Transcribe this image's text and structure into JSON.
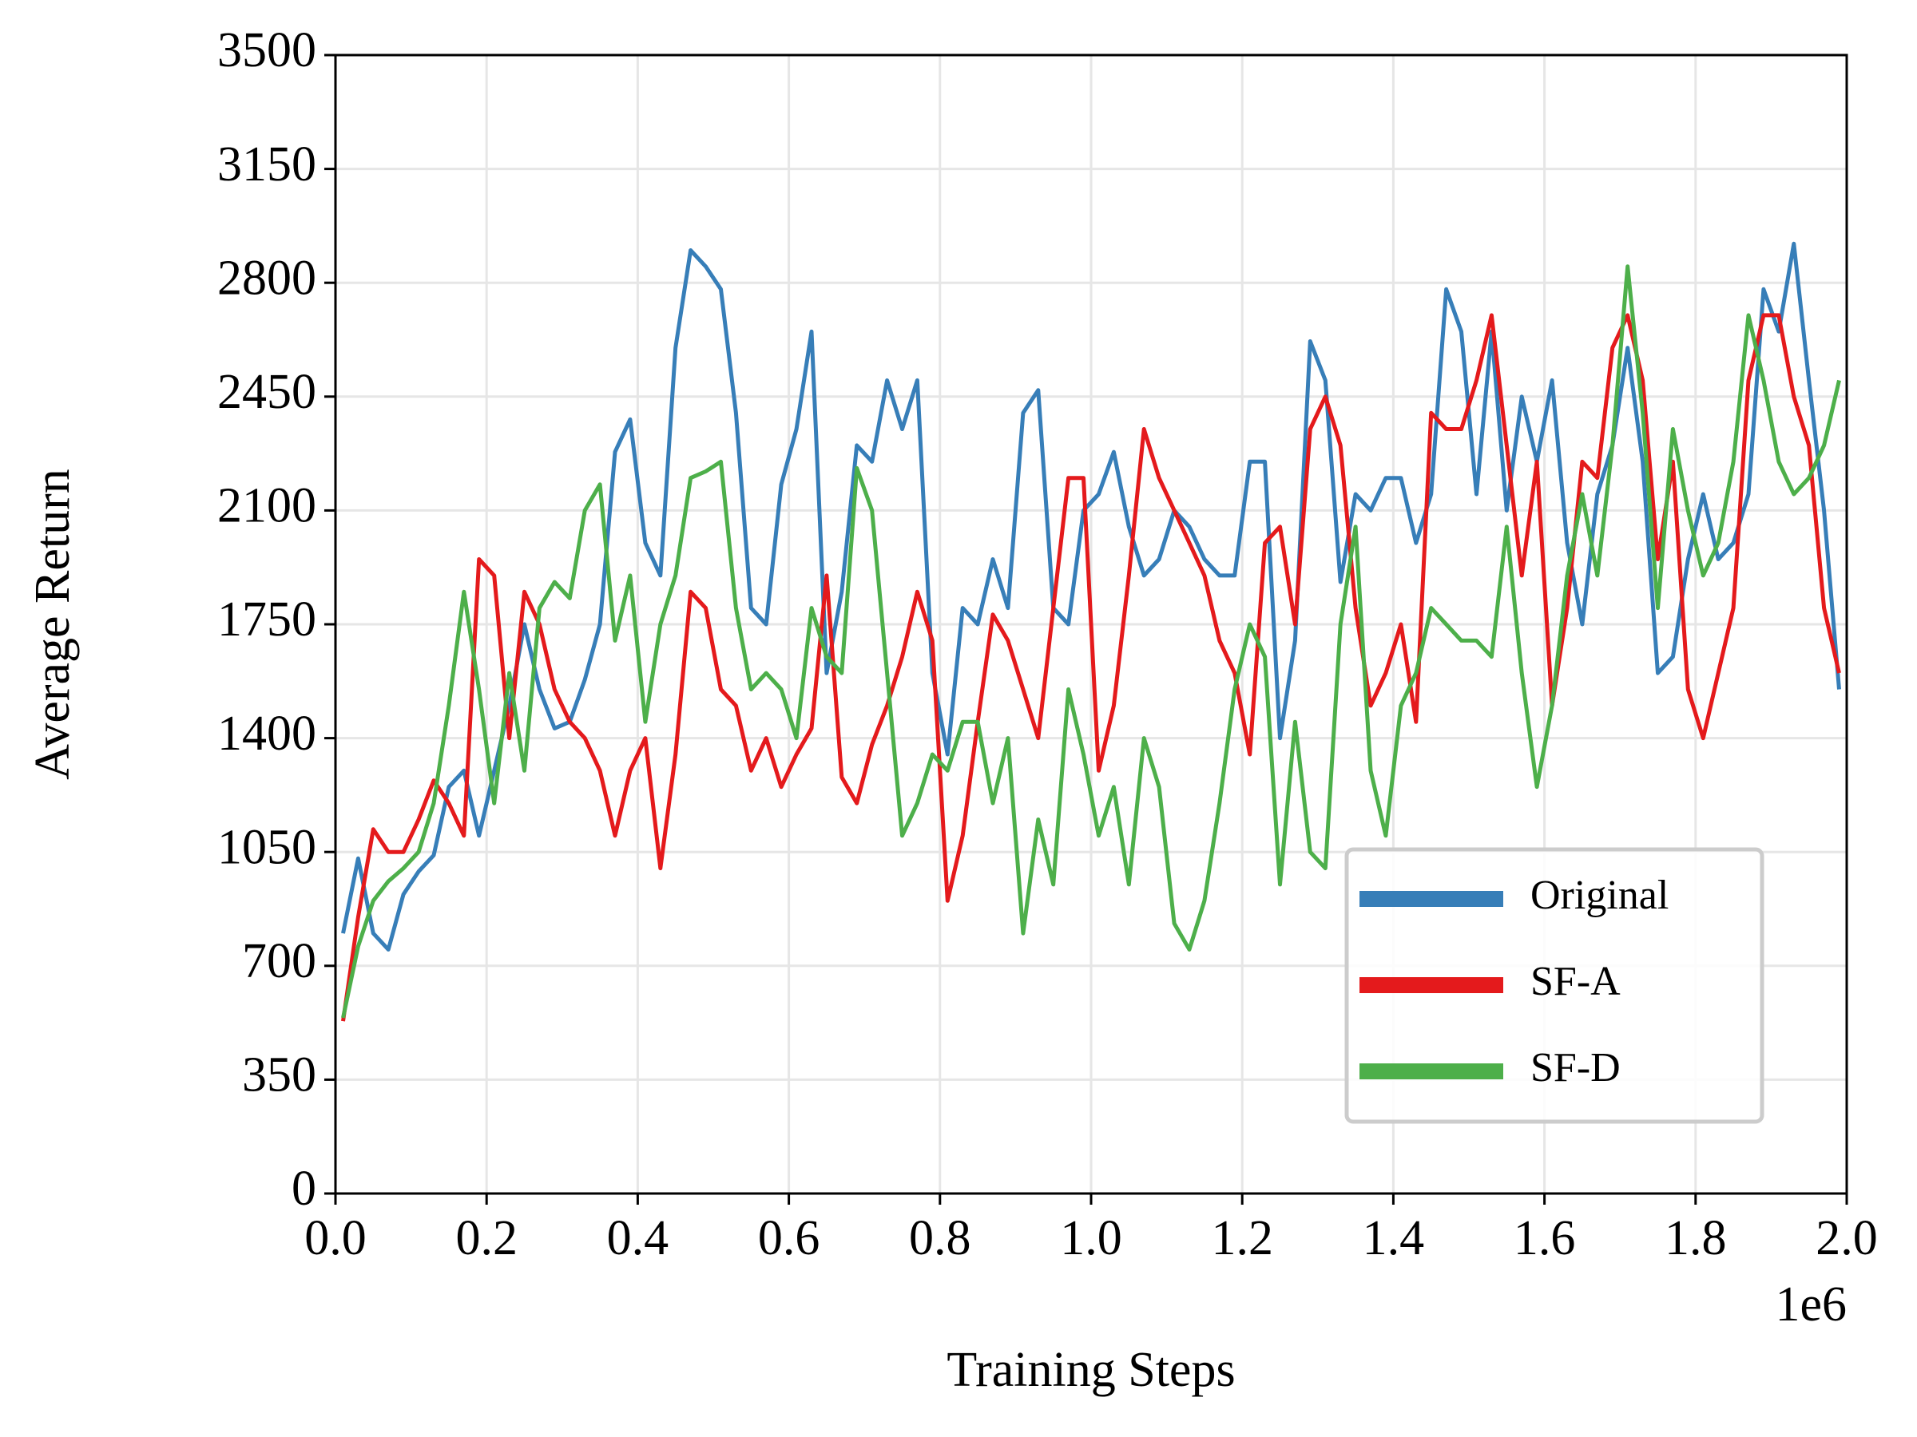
{
  "chart_data": {
    "type": "line",
    "xlabel": "Training Steps",
    "ylabel": "Average Return",
    "x_offset_label": "1e6",
    "xlim": [
      0,
      2
    ],
    "ylim": [
      0,
      3500
    ],
    "xticks": [
      {
        "value": 0,
        "label": "0.0"
      },
      0.2,
      0.4,
      0.6,
      0.8,
      {
        "value": 1,
        "label": "1.0"
      },
      1.2,
      1.4,
      1.6,
      1.8,
      {
        "value": 2,
        "label": "2.0"
      }
    ],
    "yticks": [
      0,
      350,
      700,
      1050,
      1400,
      1750,
      2100,
      2450,
      2800,
      3150,
      3500
    ],
    "grid": true,
    "legend": "lower right",
    "x": [
      0.01,
      0.03,
      0.05,
      0.07,
      0.09,
      0.11,
      0.13,
      0.15,
      0.17,
      0.19,
      0.21,
      0.23,
      0.25,
      0.27,
      0.29,
      0.31,
      0.33,
      0.35,
      0.37,
      0.39,
      0.41,
      0.43,
      0.45,
      0.47,
      0.49,
      0.51,
      0.53,
      0.55,
      0.57,
      0.59,
      0.61,
      0.63,
      0.65,
      0.67,
      0.69,
      0.71,
      0.73,
      0.75,
      0.77,
      0.79,
      0.81,
      0.83,
      0.85,
      0.87,
      0.89,
      0.91,
      0.93,
      0.95,
      0.97,
      0.99,
      1.01,
      1.03,
      1.05,
      1.07,
      1.09,
      1.11,
      1.13,
      1.15,
      1.17,
      1.19,
      1.21,
      1.23,
      1.25,
      1.27,
      1.29,
      1.31,
      1.33,
      1.35,
      1.37,
      1.39,
      1.41,
      1.43,
      1.45,
      1.47,
      1.49,
      1.51,
      1.53,
      1.55,
      1.57,
      1.59,
      1.61,
      1.63,
      1.65,
      1.67,
      1.69,
      1.71,
      1.73,
      1.75,
      1.77,
      1.79,
      1.81,
      1.83,
      1.85,
      1.87,
      1.89,
      1.91,
      1.93,
      1.95,
      1.97,
      1.99
    ],
    "series": [
      {
        "name": "Original",
        "color": "#377eb8",
        "values": [
          800,
          1030,
          800,
          750,
          920,
          990,
          1040,
          1250,
          1300,
          1100,
          1300,
          1500,
          1750,
          1550,
          1430,
          1450,
          1580,
          1750,
          2280,
          2380,
          2000,
          1900,
          2600,
          2900,
          2850,
          2780,
          2400,
          1800,
          1750,
          2180,
          2350,
          2650,
          1600,
          1850,
          2300,
          2250,
          2500,
          2350,
          2500,
          1600,
          1350,
          1800,
          1750,
          1950,
          1800,
          2400,
          2470,
          1800,
          1750,
          2100,
          2150,
          2280,
          2050,
          1900,
          1950,
          2100,
          2050,
          1950,
          1900,
          1900,
          2250,
          2250,
          1400,
          1700,
          2620,
          2500,
          1880,
          2150,
          2100,
          2200,
          2200,
          2000,
          2150,
          2780,
          2650,
          2150,
          2650,
          2100,
          2450,
          2250,
          2500,
          2000,
          1750,
          2150,
          2300,
          2600,
          2250,
          1600,
          1650,
          1950,
          2150,
          1950,
          2000,
          2150,
          2780,
          2650,
          2920,
          2500,
          2100,
          1550
        ]
      },
      {
        "name": "SF-A",
        "color": "#e41a1c",
        "values": [
          530,
          850,
          1120,
          1050,
          1050,
          1150,
          1270,
          1200,
          1100,
          1950,
          1900,
          1400,
          1850,
          1750,
          1550,
          1450,
          1400,
          1300,
          1100,
          1300,
          1400,
          1000,
          1350,
          1850,
          1800,
          1550,
          1500,
          1300,
          1400,
          1250,
          1350,
          1430,
          1900,
          1280,
          1200,
          1380,
          1500,
          1650,
          1850,
          1700,
          900,
          1100,
          1450,
          1780,
          1700,
          1550,
          1400,
          1800,
          2200,
          2200,
          1300,
          1500,
          1900,
          2350,
          2200,
          2100,
          2000,
          1900,
          1700,
          1600,
          1350,
          2000,
          2050,
          1750,
          2350,
          2450,
          2300,
          1800,
          1500,
          1600,
          1750,
          1450,
          2400,
          2350,
          2350,
          2500,
          2700,
          2300,
          1900,
          2250,
          1500,
          1800,
          2250,
          2200,
          2600,
          2700,
          2500,
          1950,
          2250,
          1550,
          1400,
          1600,
          1800,
          2500,
          2700,
          2700,
          2450,
          2300,
          1800,
          1600
        ]
      },
      {
        "name": "SF-D",
        "color": "#4daf4a",
        "values": [
          540,
          760,
          900,
          960,
          1000,
          1050,
          1200,
          1500,
          1850,
          1550,
          1200,
          1600,
          1300,
          1800,
          1880,
          1830,
          2100,
          2180,
          1700,
          1900,
          1450,
          1750,
          1900,
          2200,
          2220,
          2250,
          1800,
          1550,
          1600,
          1550,
          1400,
          1800,
          1650,
          1600,
          2230,
          2100,
          1600,
          1100,
          1200,
          1350,
          1300,
          1450,
          1450,
          1200,
          1400,
          800,
          1150,
          950,
          1550,
          1350,
          1100,
          1250,
          950,
          1400,
          1250,
          830,
          750,
          900,
          1200,
          1550,
          1750,
          1650,
          950,
          1450,
          1050,
          1000,
          1750,
          2050,
          1300,
          1100,
          1500,
          1600,
          1800,
          1750,
          1700,
          1700,
          1650,
          2050,
          1600,
          1250,
          1500,
          1900,
          2150,
          1900,
          2300,
          2850,
          2400,
          1800,
          2350,
          2100,
          1900,
          2000,
          2250,
          2700,
          2500,
          2250,
          2150,
          2200,
          2300,
          2500
        ]
      }
    ]
  }
}
